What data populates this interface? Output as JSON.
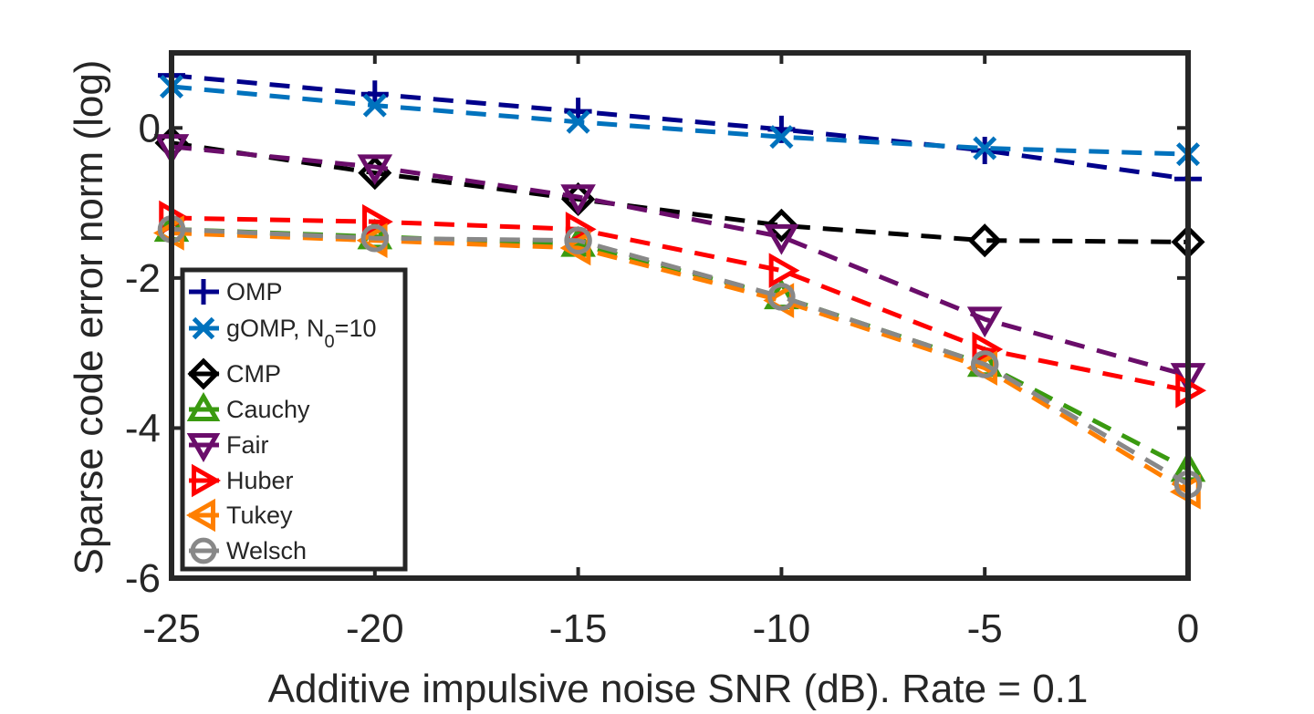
{
  "chart_data": {
    "type": "line",
    "title": "",
    "xlabel": "Additive impulsive noise SNR (dB). Rate = 0.1",
    "ylabel": "Sparse code error norm (log)",
    "xlim": [
      -25,
      0
    ],
    "ylim": [
      -6,
      1
    ],
    "xticks": [
      -25,
      -20,
      -15,
      -10,
      -5,
      0
    ],
    "yticks": [
      -6,
      -4,
      -2,
      0
    ],
    "xtick_labels": [
      "-25",
      "-20",
      "-15",
      "-10",
      "-5",
      "0"
    ],
    "ytick_labels": [
      "-6",
      "-4",
      "-2",
      "0"
    ],
    "grid": false,
    "legend_position": "bottom-left",
    "line_style": "dashed",
    "x": [
      -25,
      -20,
      -15,
      -10,
      -5,
      0
    ],
    "series": [
      {
        "name": "OMP",
        "legend_main": "OMP",
        "legend_sub": "",
        "legend_post": "",
        "color": "#00008b",
        "marker": "plus",
        "values": [
          0.7,
          0.45,
          0.22,
          -0.02,
          -0.3,
          -0.68
        ]
      },
      {
        "name": "gOMP, N0=10",
        "legend_main": "gOMP, N",
        "legend_sub": "0",
        "legend_post": "=10",
        "color": "#0072bd",
        "marker": "x",
        "values": [
          0.55,
          0.3,
          0.08,
          -0.12,
          -0.27,
          -0.35
        ]
      },
      {
        "name": "CMP",
        "legend_main": "CMP",
        "legend_sub": "",
        "legend_post": "",
        "color": "#000000",
        "marker": "diamond",
        "values": [
          -0.2,
          -0.6,
          -0.95,
          -1.3,
          -1.5,
          -1.52
        ]
      },
      {
        "name": "Cauchy",
        "legend_main": "Cauchy",
        "legend_sub": "",
        "legend_post": "",
        "color": "#3a9a10",
        "marker": "triangle-up",
        "values": [
          -1.35,
          -1.45,
          -1.55,
          -2.25,
          -3.15,
          -4.55
        ]
      },
      {
        "name": "Fair",
        "legend_main": "Fair",
        "legend_sub": "",
        "legend_post": "",
        "color": "#6a0d6a",
        "marker": "triangle-down",
        "values": [
          -0.25,
          -0.52,
          -0.92,
          -1.45,
          -2.55,
          -3.3
        ]
      },
      {
        "name": "Huber",
        "legend_main": "Huber",
        "legend_sub": "",
        "legend_post": "",
        "color": "#ff0000",
        "marker": "triangle-right",
        "values": [
          -1.2,
          -1.25,
          -1.35,
          -1.9,
          -2.95,
          -3.5
        ]
      },
      {
        "name": "Tukey",
        "legend_main": "Tukey",
        "legend_sub": "",
        "legend_post": "",
        "color": "#ff7f00",
        "marker": "triangle-left",
        "values": [
          -1.4,
          -1.5,
          -1.6,
          -2.3,
          -3.2,
          -4.85
        ]
      },
      {
        "name": "Welsch",
        "legend_main": "Welsch",
        "legend_sub": "",
        "legend_post": "",
        "color": "#888888",
        "marker": "circle",
        "values": [
          -1.35,
          -1.47,
          -1.5,
          -2.25,
          -3.15,
          -4.75
        ]
      }
    ]
  }
}
